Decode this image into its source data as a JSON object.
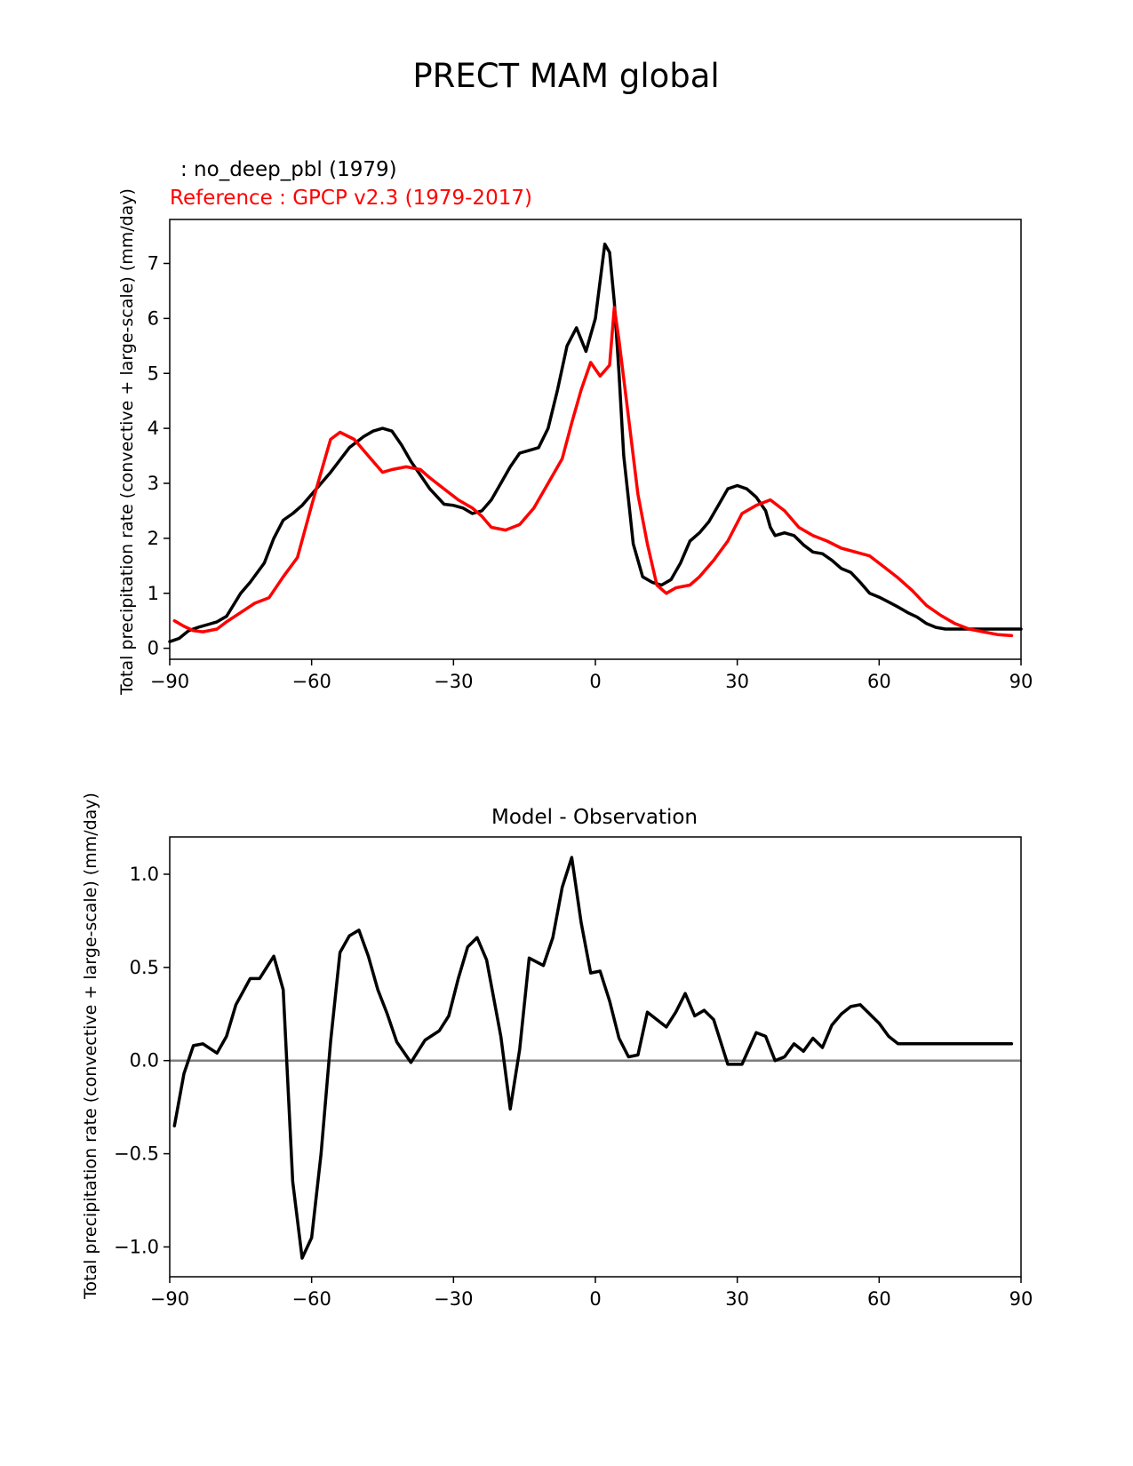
{
  "figure": {
    "title": "PRECT MAM global",
    "colors": {
      "model": "#000000",
      "reference": "#ff0000",
      "zero_line": "#808080"
    }
  },
  "chart_data": [
    {
      "type": "line",
      "title": "",
      "test_label": " : no_deep_pbl (1979)",
      "ref_label": "Reference : GPCP v2.3 (1979-2017)",
      "xlabel": "",
      "ylabel": "Total precipitation rate (convective + large-scale) (mm/day)",
      "xlim": [
        -90,
        90
      ],
      "ylim": [
        -0.2,
        7.8
      ],
      "xticks": [
        -90,
        -60,
        -30,
        0,
        30,
        60,
        90
      ],
      "xtick_labels": [
        "−90",
        "−60",
        "−30",
        "0",
        "30",
        "60",
        "90"
      ],
      "yticks": [
        0,
        1,
        2,
        3,
        4,
        5,
        6,
        7
      ],
      "ytick_labels": [
        "0",
        "1",
        "2",
        "3",
        "4",
        "5",
        "6",
        "7"
      ],
      "series": [
        {
          "name": "no_deep_pbl (1979)",
          "color": "#000000",
          "x": [
            -90,
            -88,
            -86,
            -84,
            -82,
            -80,
            -78,
            -75,
            -73,
            -70,
            -68,
            -66,
            -64,
            -62,
            -60,
            -56,
            -52,
            -49,
            -47,
            -45,
            -43,
            -41,
            -39,
            -37,
            -35,
            -32,
            -30,
            -28,
            -26,
            -24,
            -22,
            -20,
            -18,
            -16,
            -14,
            -12,
            -10,
            -8,
            -6,
            -4,
            -2,
            0,
            2,
            3,
            4,
            5,
            6,
            7,
            8,
            9,
            10,
            12,
            14,
            16,
            18,
            20,
            22,
            24,
            26,
            28,
            30,
            32,
            34,
            36,
            37,
            38,
            40,
            42,
            44,
            46,
            48,
            50,
            52,
            54,
            56,
            58,
            60,
            62,
            64,
            66,
            68,
            70,
            72,
            74,
            76,
            78,
            80,
            82,
            84,
            86,
            88,
            90
          ],
          "y": [
            0.12,
            0.18,
            0.32,
            0.38,
            0.43,
            0.48,
            0.58,
            1.0,
            1.2,
            1.55,
            2.0,
            2.33,
            2.45,
            2.6,
            2.8,
            3.2,
            3.65,
            3.85,
            3.95,
            4.0,
            3.95,
            3.7,
            3.4,
            3.15,
            2.9,
            2.62,
            2.6,
            2.55,
            2.45,
            2.5,
            2.7,
            3.0,
            3.3,
            3.55,
            3.6,
            3.65,
            4.0,
            4.7,
            5.5,
            5.83,
            5.4,
            6.0,
            7.35,
            7.2,
            6.3,
            5.0,
            3.5,
            2.7,
            1.9,
            1.6,
            1.3,
            1.2,
            1.15,
            1.25,
            1.55,
            1.95,
            2.1,
            2.3,
            2.6,
            2.9,
            2.96,
            2.9,
            2.75,
            2.5,
            2.2,
            2.05,
            2.1,
            2.05,
            1.88,
            1.75,
            1.72,
            1.6,
            1.45,
            1.38,
            1.2,
            1.0,
            0.93,
            0.84,
            0.75,
            0.65,
            0.57,
            0.45,
            0.38,
            0.35,
            0.35,
            0.35,
            0.35,
            0.35,
            0.35,
            0.35,
            0.35,
            0.35
          ]
        },
        {
          "name": "Reference : GPCP v2.3 (1979-2017)",
          "color": "#ff0000",
          "x": [
            -89,
            -87,
            -85,
            -83,
            -80,
            -78,
            -75,
            -72,
            -69,
            -66,
            -63,
            -60,
            -58,
            -56,
            -54,
            -51,
            -48,
            -45,
            -43,
            -40,
            -37,
            -35,
            -32,
            -29,
            -26,
            -24,
            -22,
            -19,
            -16,
            -13,
            -10,
            -7,
            -5,
            -3,
            -1,
            1,
            3,
            4,
            5,
            7,
            9,
            11,
            13,
            15,
            17,
            20,
            22,
            25,
            28,
            31,
            34,
            37,
            40,
            43,
            46,
            49,
            52,
            55,
            58,
            61,
            64,
            67,
            70,
            73,
            76,
            79,
            82,
            85,
            88
          ],
          "y": [
            0.5,
            0.4,
            0.32,
            0.3,
            0.35,
            0.48,
            0.65,
            0.82,
            0.92,
            1.3,
            1.65,
            2.6,
            3.2,
            3.8,
            3.93,
            3.8,
            3.5,
            3.2,
            3.25,
            3.3,
            3.25,
            3.1,
            2.9,
            2.7,
            2.55,
            2.4,
            2.2,
            2.15,
            2.25,
            2.55,
            3.0,
            3.45,
            4.1,
            4.7,
            5.2,
            4.95,
            5.15,
            6.2,
            5.6,
            4.2,
            2.8,
            1.9,
            1.15,
            1.0,
            1.1,
            1.15,
            1.3,
            1.6,
            1.95,
            2.45,
            2.6,
            2.7,
            2.5,
            2.2,
            2.05,
            1.95,
            1.82,
            1.75,
            1.68,
            1.48,
            1.28,
            1.05,
            0.78,
            0.6,
            0.45,
            0.35,
            0.3,
            0.25,
            0.23
          ]
        }
      ]
    },
    {
      "type": "line",
      "title": "Model - Observation",
      "xlabel": "",
      "ylabel": "Total precipitation rate (convective + large-scale) (mm/day)",
      "xlim": [
        -90,
        90
      ],
      "ylim": [
        -1.16,
        1.2
      ],
      "xticks": [
        -90,
        -60,
        -30,
        0,
        30,
        60,
        90
      ],
      "xtick_labels": [
        "−90",
        "−60",
        "−30",
        "0",
        "30",
        "60",
        "90"
      ],
      "yticks": [
        -1.0,
        -0.5,
        0.0,
        0.5,
        1.0
      ],
      "ytick_labels": [
        "−1.0",
        "−0.5",
        "0.0",
        "0.5",
        "1.0"
      ],
      "zero_line": true,
      "series": [
        {
          "name": "Model - Observation",
          "color": "#000000",
          "x": [
            -89,
            -87,
            -85,
            -83,
            -80,
            -78,
            -76,
            -73,
            -71,
            -68,
            -66,
            -64,
            -62,
            -60,
            -58,
            -56,
            -54,
            -52,
            -50,
            -48,
            -46,
            -44,
            -42,
            -39,
            -36,
            -33,
            -31,
            -29,
            -27,
            -25,
            -23,
            -20,
            -18,
            -16,
            -14,
            -11,
            -9,
            -7,
            -5,
            -3,
            -1,
            1,
            3,
            5,
            7,
            9,
            11,
            13,
            15,
            17,
            19,
            21,
            23,
            25,
            28,
            31,
            34,
            36,
            38,
            40,
            42,
            44,
            46,
            48,
            50,
            52,
            54,
            56,
            58,
            60,
            62,
            64,
            66,
            68,
            70,
            72,
            74,
            76,
            78,
            80,
            82,
            84,
            86,
            88
          ],
          "y": [
            -0.35,
            -0.07,
            0.08,
            0.09,
            0.04,
            0.13,
            0.3,
            0.44,
            0.44,
            0.56,
            0.38,
            -0.65,
            -1.06,
            -0.95,
            -0.5,
            0.1,
            0.58,
            0.67,
            0.7,
            0.56,
            0.38,
            0.25,
            0.1,
            -0.01,
            0.11,
            0.16,
            0.24,
            0.44,
            0.61,
            0.66,
            0.54,
            0.13,
            -0.26,
            0.06,
            0.55,
            0.51,
            0.66,
            0.93,
            1.09,
            0.74,
            0.47,
            0.48,
            0.32,
            0.12,
            0.02,
            0.03,
            0.26,
            0.22,
            0.18,
            0.26,
            0.36,
            0.24,
            0.27,
            0.22,
            -0.02,
            -0.02,
            0.15,
            0.13,
            0.0,
            0.02,
            0.09,
            0.05,
            0.12,
            0.07,
            0.19,
            0.25,
            0.29,
            0.3,
            0.25,
            0.2,
            0.13,
            0.09,
            0.09,
            0.09,
            0.09,
            0.09,
            0.09,
            0.09,
            0.09,
            0.09,
            0.09,
            0.09,
            0.09,
            0.09
          ]
        }
      ]
    }
  ]
}
